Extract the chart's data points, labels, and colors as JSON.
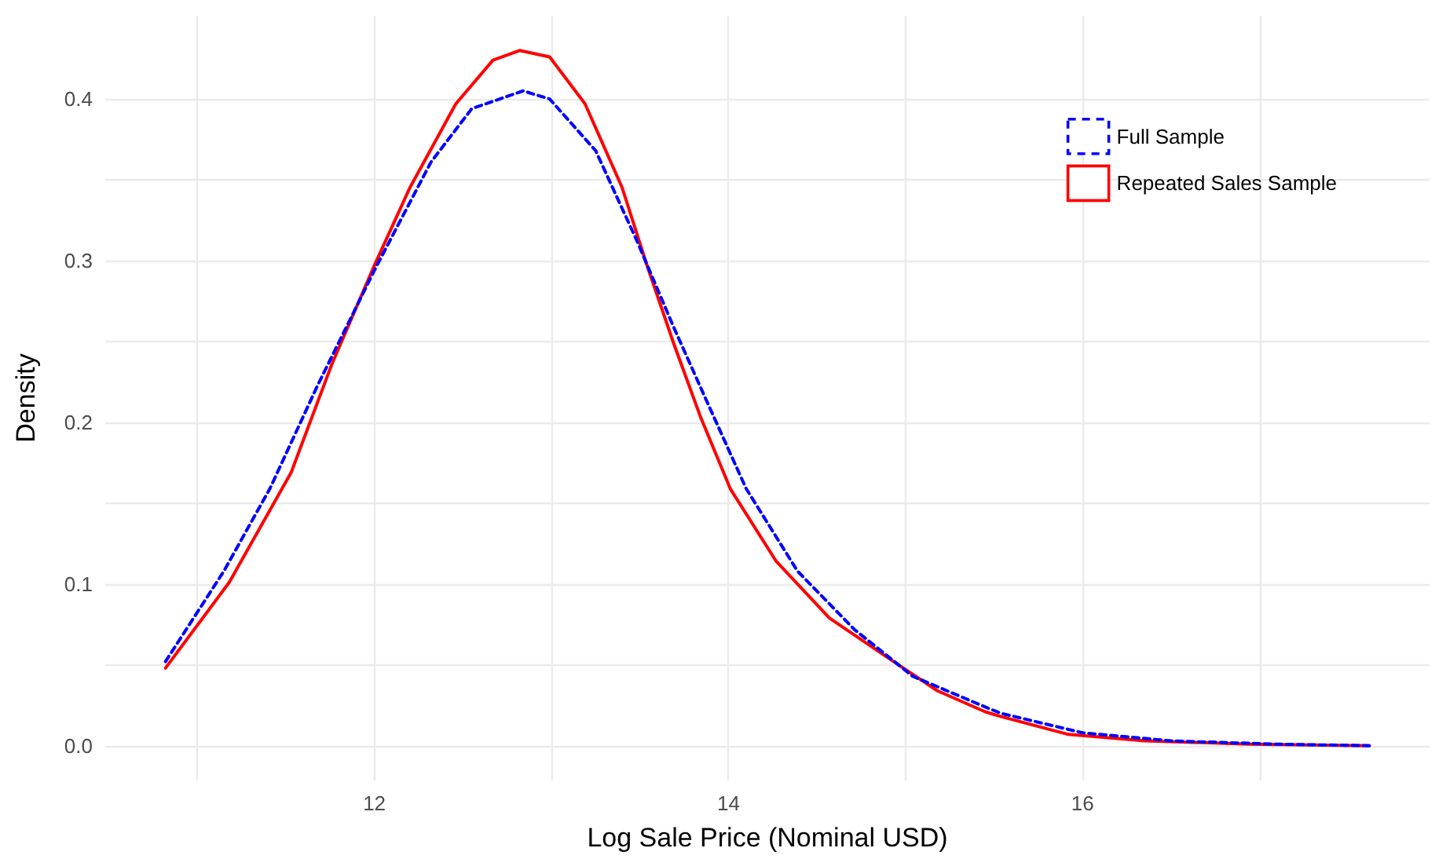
{
  "chart_data": {
    "type": "line",
    "xlabel": "Log Sale Price (Nominal USD)",
    "ylabel": "Density",
    "xlim": [
      10.48,
      17.96
    ],
    "xticks": [
      {
        "value": 11,
        "label": null
      },
      12,
      {
        "value": 13,
        "label": null
      },
      14,
      {
        "value": 15,
        "label": null
      },
      16,
      {
        "value": 17,
        "label": null
      }
    ],
    "ylim": [
      -0.0215,
      0.4515
    ],
    "yticks": [
      {
        "value": 0,
        "label": "0.0"
      },
      {
        "value": 0.05,
        "label": null
      },
      0.1,
      {
        "value": 0.15,
        "label": null
      },
      0.2,
      {
        "value": 0.25,
        "label": null
      },
      0.3,
      {
        "value": 0.35,
        "label": null
      },
      0.4
    ],
    "grid": true,
    "legend": "top right",
    "marker": "none",
    "series": [
      {
        "name": "Full Sample",
        "color": "#0000ff",
        "line_style": "dashed",
        "x": [
          10.82,
          11.15,
          11.41,
          11.68,
          12.0,
          12.32,
          12.55,
          12.84,
          12.99,
          13.25,
          13.48,
          13.69,
          13.89,
          14.1,
          14.39,
          14.71,
          15.04,
          15.45,
          15.54,
          16.0,
          16.5,
          17.09,
          17.62
        ],
        "values": [
          0.052,
          0.108,
          0.159,
          0.223,
          0.294,
          0.361,
          0.394,
          0.405,
          0.4,
          0.368,
          0.313,
          0.259,
          0.21,
          0.159,
          0.108,
          0.072,
          0.043,
          0.024,
          0.02,
          0.008,
          0.003,
          0.001,
          0.0
        ]
      },
      {
        "name": "Repeated Sales Sample",
        "color": "#ff0000",
        "line_style": "solid",
        "x": [
          10.82,
          11.18,
          11.53,
          11.76,
          12.0,
          12.2,
          12.46,
          12.67,
          12.82,
          12.99,
          13.19,
          13.4,
          13.54,
          13.69,
          13.84,
          14.01,
          14.27,
          14.57,
          14.92,
          15.18,
          15.45,
          15.54,
          15.92,
          16.35,
          16.94,
          17.62
        ],
        "values": [
          0.048,
          0.101,
          0.169,
          0.236,
          0.297,
          0.345,
          0.397,
          0.424,
          0.43,
          0.426,
          0.397,
          0.345,
          0.297,
          0.249,
          0.204,
          0.159,
          0.114,
          0.079,
          0.053,
          0.034,
          0.021,
          0.018,
          0.007,
          0.003,
          0.001,
          0.0
        ]
      }
    ]
  }
}
